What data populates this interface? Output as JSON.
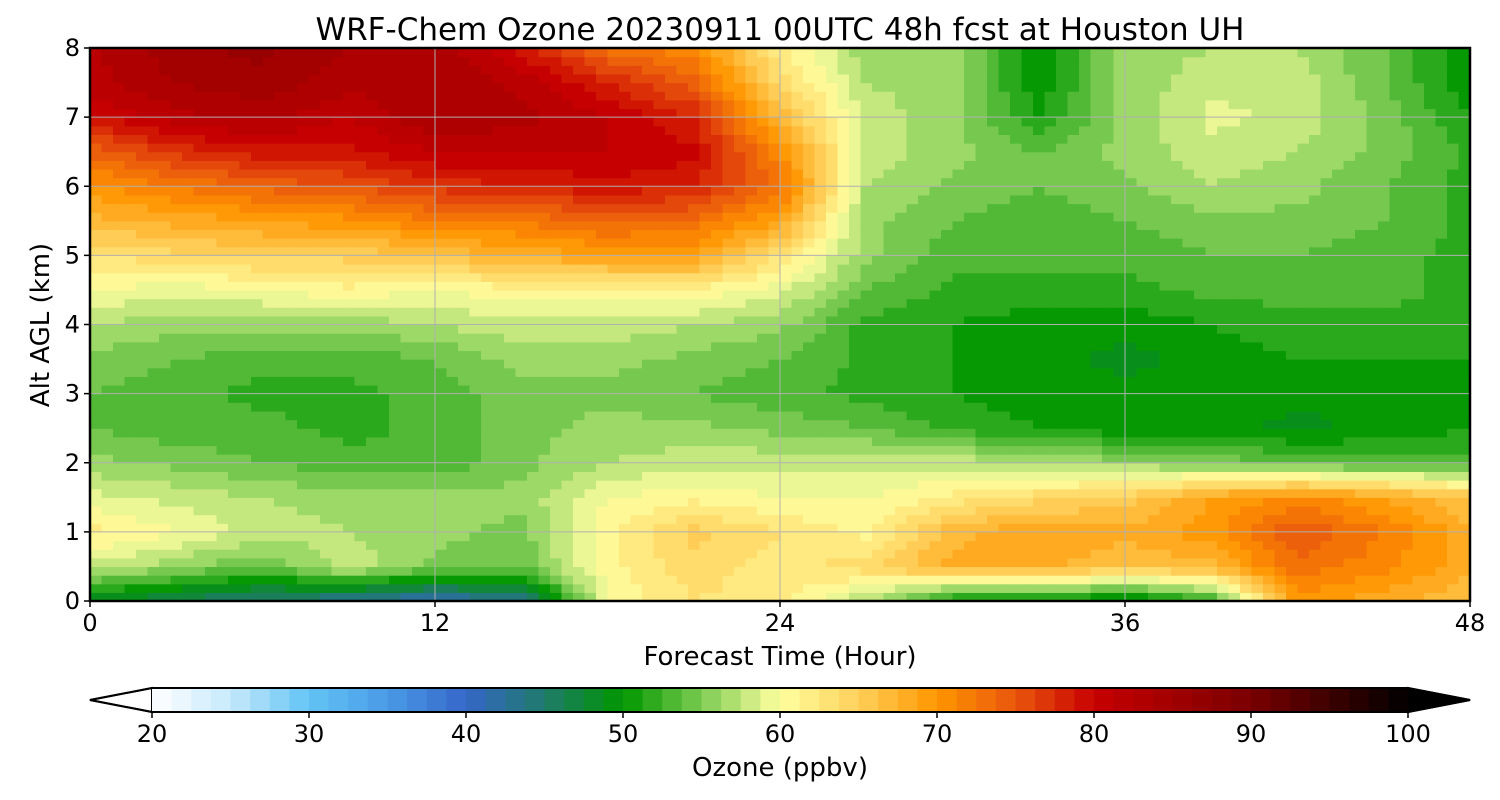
{
  "chart_data": {
    "type": "heatmap",
    "title": "WRF-Chem Ozone  20230911 00UTC 48h fcst at Houston UH",
    "xlabel": "Forecast Time (Hour)",
    "ylabel": "Alt AGL (km)",
    "xlim": [
      0,
      48
    ],
    "ylim": [
      0,
      8
    ],
    "x_ticks": [
      "0",
      "12",
      "24",
      "36",
      "48"
    ],
    "y_ticks": [
      "0",
      "1",
      "2",
      "3",
      "4",
      "5",
      "6",
      "7",
      "8"
    ],
    "grid": true,
    "x": [
      0,
      3,
      6,
      9,
      12,
      15,
      18,
      21,
      24,
      27,
      30,
      33,
      36,
      39,
      42,
      45,
      48
    ],
    "y": [
      0,
      0.5,
      1,
      1.5,
      2,
      2.5,
      3,
      3.5,
      4,
      4.5,
      5,
      5.5,
      6,
      6.5,
      7,
      7.5,
      8
    ],
    "z": [
      [
        48,
        46,
        44,
        43,
        41,
        43,
        60,
        63,
        62,
        57,
        50,
        50,
        48,
        52,
        70,
        68,
        66
      ],
      [
        58,
        56,
        54,
        58,
        55,
        54,
        61,
        64,
        62,
        64,
        68,
        68,
        66,
        67,
        73,
        71,
        68
      ],
      [
        62,
        60,
        58,
        57,
        56,
        55,
        61,
        65,
        63,
        61,
        67,
        69,
        68,
        70,
        75,
        72,
        68
      ],
      [
        59,
        58,
        57,
        56,
        56,
        56,
        60,
        61,
        60,
        60,
        62,
        64,
        65,
        69,
        71,
        69,
        66
      ],
      [
        56,
        55,
        54,
        53,
        53,
        55,
        57,
        58,
        58,
        58,
        58,
        57,
        56,
        55,
        54,
        53,
        53
      ],
      [
        54,
        53,
        53,
        52,
        53,
        55,
        56,
        56,
        55,
        54,
        52,
        51,
        50,
        50,
        49,
        50,
        51
      ],
      [
        54,
        53,
        52,
        52,
        53,
        55,
        55,
        54,
        53,
        52,
        51,
        50,
        50,
        50,
        50,
        50,
        51
      ],
      [
        55,
        54,
        53,
        53,
        54,
        56,
        56,
        55,
        54,
        52,
        51,
        50,
        49,
        50,
        51,
        51,
        51
      ],
      [
        57,
        56,
        56,
        56,
        57,
        58,
        58,
        57,
        56,
        52,
        51,
        50,
        50,
        51,
        52,
        52,
        52
      ],
      [
        60,
        59,
        60,
        61,
        60,
        61,
        61,
        61,
        59,
        54,
        52,
        52,
        52,
        53,
        53,
        53,
        52
      ],
      [
        63,
        64,
        65,
        65,
        66,
        68,
        69,
        69,
        63,
        56,
        53,
        53,
        53,
        54,
        54,
        53,
        52
      ],
      [
        67,
        68,
        69,
        70,
        72,
        72,
        74,
        73,
        69,
        56,
        54,
        53,
        54,
        55,
        55,
        54,
        52
      ],
      [
        70,
        72,
        74,
        75,
        77,
        78,
        79,
        78,
        73,
        57,
        55,
        54,
        55,
        57,
        56,
        54,
        52
      ],
      [
        74,
        77,
        79,
        79,
        81,
        81,
        81,
        80,
        71,
        58,
        56,
        54,
        56,
        58,
        57,
        55,
        52
      ],
      [
        79,
        82,
        83,
        81,
        84,
        83,
        81,
        78,
        67,
        58,
        56,
        51,
        56,
        59,
        58,
        55,
        51
      ],
      [
        82,
        84,
        85,
        83,
        84,
        82,
        78,
        74,
        64,
        57,
        56,
        50,
        56,
        58,
        58,
        54,
        50
      ],
      [
        82,
        85,
        86,
        84,
        84,
        79,
        73,
        71,
        62,
        56,
        56,
        50,
        56,
        57,
        57,
        54,
        50
      ]
    ],
    "colorbar": {
      "label": "Ozone  (ppbv)",
      "min": 20,
      "max": 100,
      "ticks": [
        "20",
        "30",
        "40",
        "50",
        "60",
        "70",
        "80",
        "90",
        "100"
      ],
      "extend": "both",
      "orientation": "horizontal",
      "stops": [
        {
          "v": 20,
          "c": "#ffffff"
        },
        {
          "v": 25,
          "c": "#c6e9fb"
        },
        {
          "v": 30,
          "c": "#62c4f5"
        },
        {
          "v": 35,
          "c": "#4a9ae6"
        },
        {
          "v": 40,
          "c": "#3567c9"
        },
        {
          "v": 45,
          "c": "#1f7a6a"
        },
        {
          "v": 50,
          "c": "#009600"
        },
        {
          "v": 55,
          "c": "#7ccc52"
        },
        {
          "v": 60,
          "c": "#ffffa0"
        },
        {
          "v": 65,
          "c": "#ffd05a"
        },
        {
          "v": 70,
          "c": "#ff9600"
        },
        {
          "v": 75,
          "c": "#e9560d"
        },
        {
          "v": 80,
          "c": "#c80000"
        },
        {
          "v": 90,
          "c": "#7a0000"
        },
        {
          "v": 100,
          "c": "#000000"
        }
      ]
    }
  }
}
